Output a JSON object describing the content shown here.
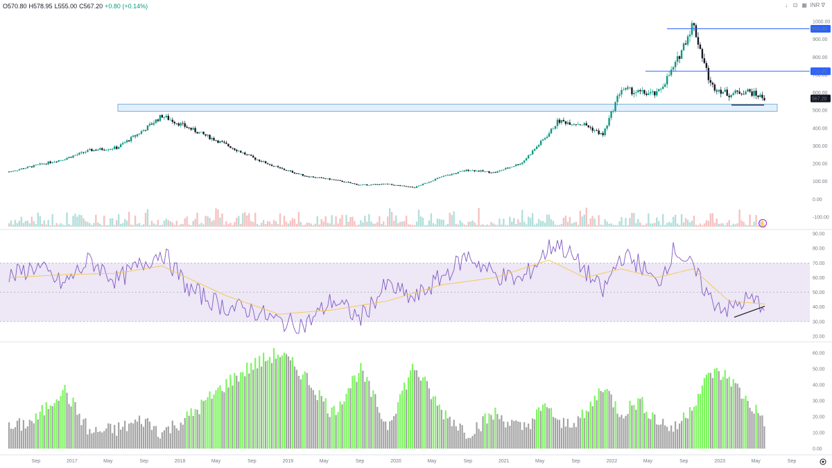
{
  "header": {
    "open": "O570.80",
    "high": "H578.95",
    "low": "L555.00",
    "close": "C567.20",
    "change": "+0.80 (+0.14%)"
  },
  "toolbar": {
    "currency": "INR ∇",
    "items": [
      "down-arrow-icon",
      "lock-icon",
      "grid-icon"
    ]
  },
  "colors": {
    "up": "#089981",
    "down": "#131722",
    "volume_up": "#b2dfdb",
    "volume_down": "#f5c2c2",
    "rsi_line": "#7e57c2",
    "rsi_ma": "#f6c744",
    "rsi_band": "#ede7f6",
    "hline": "#2962ff",
    "zone_fill": "#e3f0fb",
    "zone_border": "#5b9bd5",
    "hist_green": "#7cf55e",
    "hist_gray": "#a3a3a3"
  },
  "chart_data": [
    {
      "type": "line",
      "title": "",
      "note_type": "candlestick",
      "y_axis_ticks": [
        "-100.00",
        "0.00",
        "100.00",
        "200.00",
        "300.00",
        "400.00",
        "500.00",
        "600.00",
        "700.00",
        "800.00",
        "900.00",
        "1000.00"
      ],
      "last_price_label": "567.20",
      "horizontal_line_labels": [
        "959.00",
        "719.95"
      ],
      "horizontal_lines": [
        959.0,
        719.95
      ],
      "zone": [
        495,
        535
      ],
      "x_range": [
        "2016-05",
        "2023-10"
      ],
      "series": [
        {
          "x": [
            "2016-06",
            "2016-09",
            "2016-12",
            "2017-03",
            "2017-06",
            "2017-09",
            "2017-11",
            "2018-02",
            "2018-06",
            "2018-09",
            "2018-12",
            "2019-03",
            "2019-06",
            "2019-09",
            "2019-12",
            "2020-03",
            "2020-06",
            "2020-09",
            "2020-12",
            "2021-03",
            "2021-06",
            "2021-07",
            "2021-10",
            "2021-12",
            "2022-02",
            "2022-04",
            "2022-06",
            "2022-08",
            "2022-10",
            "2022-12",
            "2023-02",
            "2023-04",
            "2023-06"
          ],
          "values": [
            155,
            190,
            225,
            275,
            290,
            390,
            470,
            400,
            310,
            235,
            175,
            130,
            110,
            80,
            85,
            65,
            125,
            165,
            150,
            205,
            370,
            440,
            420,
            360,
            620,
            600,
            590,
            750,
            990,
            640,
            590,
            610,
            567
          ]
        }
      ]
    },
    {
      "type": "line",
      "title": "",
      "y_axis_ticks": [
        "20.00",
        "30.00",
        "40.00",
        "50.00",
        "60.00",
        "70.00",
        "80.00",
        "90.00"
      ],
      "band": [
        30,
        70
      ],
      "series": [
        {
          "x": [
            "2016-06",
            "2016-09",
            "2016-12",
            "2017-03",
            "2017-06",
            "2017-09",
            "2017-11",
            "2018-02",
            "2018-06",
            "2018-09",
            "2018-12",
            "2019-03",
            "2019-06",
            "2019-09",
            "2019-12",
            "2020-03",
            "2020-06",
            "2020-09",
            "2020-12",
            "2021-03",
            "2021-06",
            "2021-07",
            "2021-10",
            "2021-12",
            "2022-02",
            "2022-04",
            "2022-06",
            "2022-08",
            "2022-10",
            "2022-12",
            "2023-02",
            "2023-04",
            "2023-06"
          ],
          "values": [
            60,
            68,
            55,
            72,
            58,
            70,
            78,
            52,
            40,
            38,
            30,
            28,
            45,
            32,
            55,
            45,
            60,
            75,
            62,
            58,
            80,
            84,
            65,
            50,
            75,
            70,
            55,
            80,
            66,
            45,
            38,
            45,
            42
          ]
        },
        {
          "x": [
            "2016-06",
            "2016-12",
            "2017-06",
            "2017-11",
            "2018-06",
            "2018-12",
            "2019-06",
            "2019-12",
            "2020-06",
            "2020-12",
            "2021-06",
            "2021-10",
            "2022-02",
            "2022-06",
            "2022-10",
            "2023-02",
            "2023-06"
          ],
          "values": [
            60,
            62,
            63,
            68,
            48,
            35,
            38,
            44,
            55,
            60,
            72,
            60,
            66,
            60,
            66,
            44,
            42
          ]
        }
      ]
    },
    {
      "type": "bar",
      "title": "",
      "y_axis_ticks": [
        "0.00",
        "10.00",
        "20.00",
        "30.00",
        "40.00",
        "50.00",
        "60.00"
      ],
      "series": [
        {
          "x": [
            "2016-06",
            "2016-09",
            "2016-12",
            "2017-03",
            "2017-06",
            "2017-09",
            "2017-11",
            "2018-02",
            "2018-06",
            "2018-09",
            "2018-12",
            "2019-03",
            "2019-06",
            "2019-09",
            "2019-12",
            "2020-03",
            "2020-06",
            "2020-09",
            "2020-12",
            "2021-03",
            "2021-06",
            "2021-07",
            "2021-10",
            "2021-12",
            "2022-02",
            "2022-04",
            "2022-06",
            "2022-08",
            "2022-10",
            "2022-12",
            "2023-02",
            "2023-04",
            "2023-06"
          ],
          "values": [
            12,
            18,
            38,
            10,
            12,
            18,
            10,
            20,
            40,
            52,
            60,
            45,
            22,
            50,
            14,
            52,
            24,
            10,
            22,
            12,
            28,
            14,
            20,
            40,
            22,
            30,
            18,
            12,
            28,
            48,
            45,
            30,
            18
          ]
        }
      ]
    }
  ],
  "time_axis": [
    "Sep",
    "2017",
    "May",
    "Sep",
    "2018",
    "May",
    "Sep",
    "2019",
    "May",
    "Sep",
    "2020",
    "May",
    "Sep",
    "2021",
    "May",
    "Sep",
    "2022",
    "May",
    "Sep",
    "2023",
    "May",
    "Sep"
  ]
}
